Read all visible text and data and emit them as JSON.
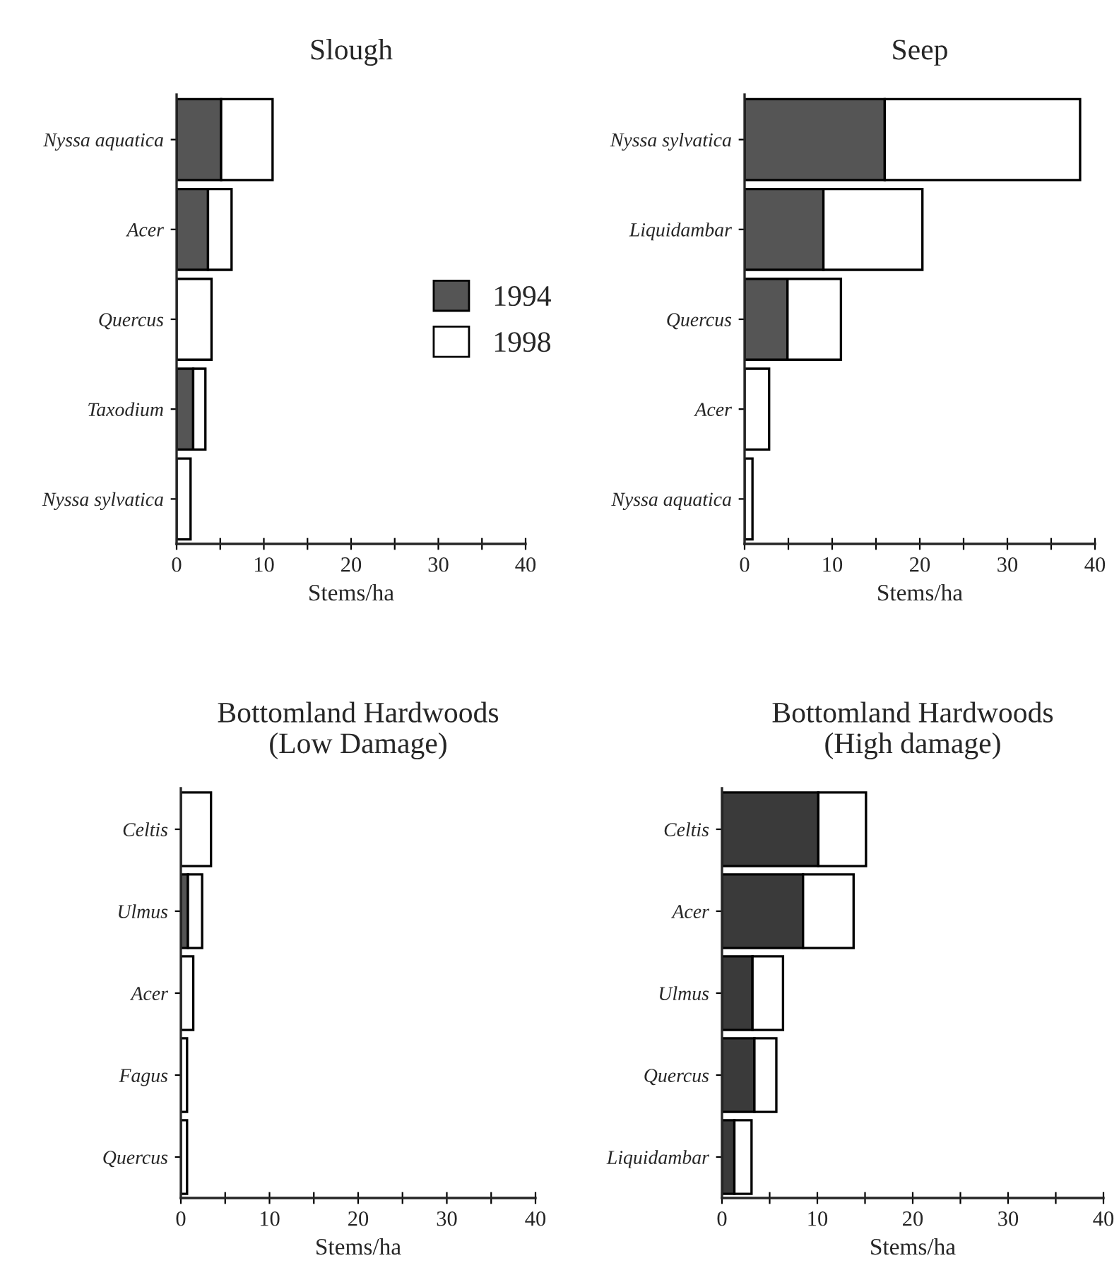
{
  "chart_data": [
    {
      "type": "bar",
      "orientation": "horizontal",
      "stacked": true,
      "title": "Slough",
      "xlabel": "Stems/ha",
      "legend": "right",
      "categories": [
        "Nyssa aquatica",
        "Acer",
        "Quercus",
        "Taxodium",
        "Nyssa sylvatica"
      ],
      "series": [
        {
          "name": "1994",
          "color": "#555555",
          "values": [
            5.1,
            3.6,
            0,
            1.9,
            0
          ]
        },
        {
          "name": "1998",
          "color": "#ffffff",
          "values": [
            5.9,
            2.7,
            4.0,
            1.4,
            1.6
          ]
        }
      ],
      "xlim": [
        0,
        40
      ],
      "xticks": [
        0,
        {
          "value": 5,
          "label": null
        },
        10,
        {
          "value": 15,
          "label": null
        },
        20,
        {
          "value": 25,
          "label": null
        },
        30,
        {
          "value": 35,
          "label": null
        },
        40
      ],
      "grid": false
    },
    {
      "type": "bar",
      "orientation": "horizontal",
      "stacked": true,
      "title": "Seep",
      "xlabel": "Stems/ha",
      "legend": false,
      "categories": [
        "Nyssa sylvatica",
        "Liquidambar",
        "Quercus",
        "Acer",
        "Nyssa aquatica"
      ],
      "series": [
        {
          "color": "#555555",
          "values": [
            16.0,
            9.0,
            4.9,
            0,
            0
          ]
        },
        {
          "color": "#ffffff",
          "values": [
            22.3,
            11.3,
            6.1,
            2.8,
            0.9
          ]
        }
      ],
      "xlim": [
        0,
        40
      ],
      "xticks": [
        0,
        {
          "value": 5,
          "label": null
        },
        10,
        {
          "value": 15,
          "label": null
        },
        20,
        {
          "value": 25,
          "label": null
        },
        30,
        {
          "value": 35,
          "label": null
        },
        40
      ],
      "grid": false
    },
    {
      "type": "bar",
      "orientation": "horizontal",
      "stacked": true,
      "title": "Bottomland Hardwoods\n(Low Damage)",
      "xlabel": "Stems/ha",
      "legend": false,
      "categories": [
        "Celtis",
        "Ulmus",
        "Acer",
        "Fagus",
        "Quercus"
      ],
      "series": [
        {
          "color": "#555555",
          "values": [
            null,
            0.8,
            null,
            0,
            0
          ]
        },
        {
          "color": "#ffffff",
          "values": [
            3.4,
            1.6,
            1.4,
            0.7,
            0.7
          ]
        }
      ],
      "xlim": [
        0,
        40
      ],
      "xticks": [
        0,
        {
          "value": 5,
          "label": null
        },
        10,
        {
          "value": 15,
          "label": null
        },
        20,
        {
          "value": 25,
          "label": null
        },
        30,
        {
          "value": 35,
          "label": null
        },
        40
      ],
      "grid": false
    },
    {
      "type": "bar",
      "orientation": "horizontal",
      "stacked": true,
      "title": "Bottomland Hardwoods\n(High damage)",
      "xlabel": "Stems/ha",
      "legend": false,
      "categories": [
        "Celtis",
        "Acer",
        "Ulmus",
        "Quercus",
        "Liquidambar"
      ],
      "series": [
        {
          "color": "#3a3a3a",
          "values": [
            10.1,
            8.5,
            3.2,
            3.4,
            1.3
          ]
        },
        {
          "color": "#ffffff",
          "values": [
            5.0,
            5.3,
            3.2,
            2.3,
            1.8
          ]
        }
      ],
      "xlim": [
        0,
        40
      ],
      "xticks": [
        0,
        {
          "value": 5,
          "label": null
        },
        10,
        {
          "value": 15,
          "label": null
        },
        20,
        {
          "value": 25,
          "label": null
        },
        30,
        {
          "value": 35,
          "label": null
        },
        40
      ],
      "grid": false
    }
  ]
}
